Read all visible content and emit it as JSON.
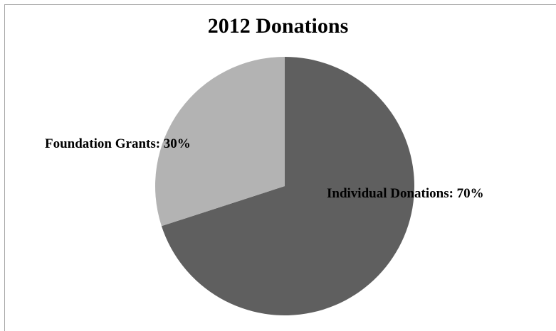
{
  "chart_data": {
    "type": "pie",
    "title": "2012 Donations",
    "categories": [
      "Individual Donations",
      "Foundation Grants"
    ],
    "values": [
      70,
      30
    ],
    "unit": "%",
    "data_labels": [
      "Individual Donations: 70%",
      "Foundation Grants: 30%"
    ],
    "colors": [
      "#5f5f5f",
      "#b3b3b3"
    ],
    "start_angle_deg": 0,
    "direction": "clockwise",
    "legend": "none"
  }
}
